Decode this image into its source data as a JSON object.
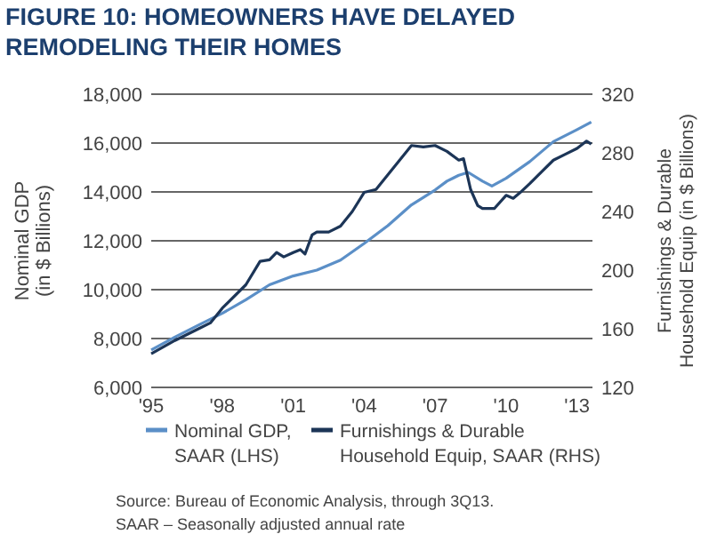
{
  "chart_data": {
    "type": "line",
    "title": "FIGURE 10: HOMEOWNERS HAVE DELAYED REMODELING THEIR HOMES",
    "ylabel": "Nominal GDP (in $ Billions)",
    "y2label": "Furnishings & Durable Household Equip (in $ Billions)",
    "xlim": [
      1995,
      2013.65
    ],
    "xticks": [
      {
        "value": 1995,
        "label": "'95"
      },
      {
        "value": 1998,
        "label": "'98"
      },
      {
        "value": 2001,
        "label": "'01"
      },
      {
        "value": 2004,
        "label": "'04"
      },
      {
        "value": 2007,
        "label": "'07"
      },
      {
        "value": 2010,
        "label": "'10"
      },
      {
        "value": 2013,
        "label": "'13"
      }
    ],
    "ylim": [
      6000,
      18000
    ],
    "yticks": [
      {
        "value": 6000,
        "label": "6,000"
      },
      {
        "value": 8000,
        "label": "8,000"
      },
      {
        "value": 10000,
        "label": "10,000"
      },
      {
        "value": 12000,
        "label": "12,000"
      },
      {
        "value": 14000,
        "label": "14,000"
      },
      {
        "value": 16000,
        "label": "16,000"
      },
      {
        "value": 18000,
        "label": "18,000"
      }
    ],
    "y2lim": [
      120,
      320
    ],
    "y2ticks": [
      120,
      160,
      200,
      240,
      280,
      320
    ],
    "grid": "y",
    "legend": "bottom",
    "line_style": "solid",
    "series": [
      {
        "name": "Nominal GDP, SAAR (LHS)",
        "color": "#5b8fc7",
        "x": [
          1995,
          1996,
          1997,
          1998,
          1999,
          2000,
          2001,
          2002,
          2003,
          2004,
          2005,
          2006,
          2007,
          2007.5,
          2008,
          2008.4,
          2009,
          2009.4,
          2010,
          2011,
          2012,
          2013,
          2013.6
        ],
        "values": [
          7530,
          8060,
          8550,
          9030,
          9590,
          10200,
          10560,
          10800,
          11210,
          11890,
          12620,
          13470,
          14080,
          14440,
          14680,
          14800,
          14440,
          14240,
          14560,
          15240,
          16060,
          16550,
          16860
        ]
      },
      {
        "name": "Furnishings & Durable Household Equip, SAAR (RHS)",
        "color": "#1c3557",
        "axis": "y2",
        "x": [
          1995,
          1996,
          1997,
          1997.5,
          1998,
          1999,
          1999.6,
          2000,
          2000.3,
          2000.6,
          2001,
          2001.3,
          2001.5,
          2001.8,
          2002,
          2002.5,
          2003,
          2003.5,
          2004,
          2004.5,
          2005,
          2005.5,
          2006,
          2006.5,
          2007,
          2007.5,
          2008,
          2008.2,
          2008.5,
          2008.8,
          2009,
          2009.5,
          2010,
          2010.3,
          2010.6,
          2011,
          2011.5,
          2012,
          2012.5,
          2013,
          2013.4,
          2013.6
        ],
        "values": [
          143,
          152,
          160,
          164,
          174,
          190,
          206,
          207,
          212,
          209,
          212,
          214,
          211,
          224,
          226,
          226,
          230,
          240,
          253,
          255,
          265,
          275,
          285,
          284,
          285,
          281,
          275,
          276,
          255,
          244,
          242,
          242,
          251,
          249,
          253,
          259,
          267,
          275,
          279,
          283,
          288,
          286
        ]
      }
    ],
    "annotations": [
      "Source: Bureau of Economic Analysis, through 3Q13.",
      "SAAR – Seasonally adjusted annual rate"
    ]
  }
}
